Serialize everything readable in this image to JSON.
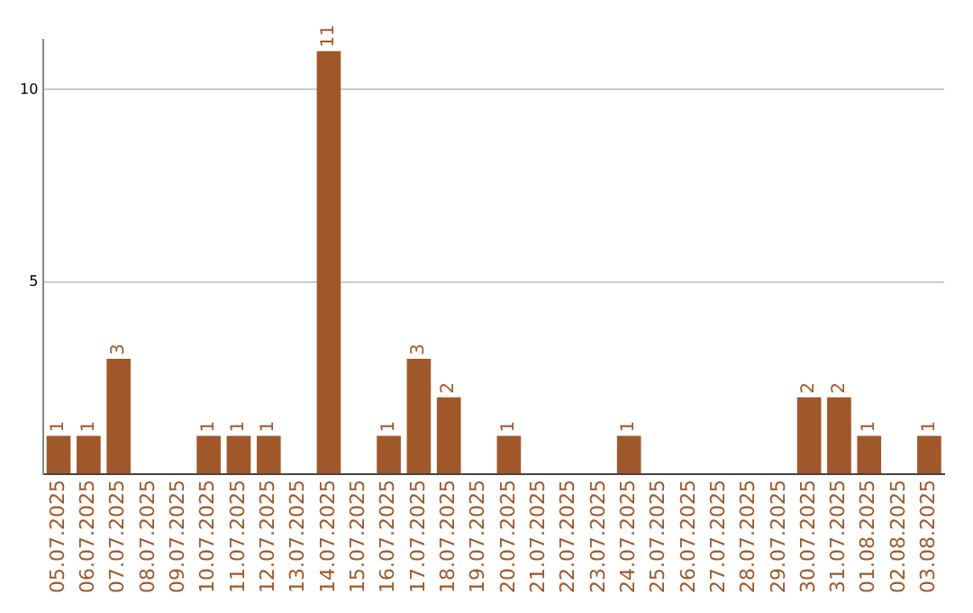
{
  "chart_data": {
    "type": "bar",
    "categories": [
      "05.07.2025",
      "06.07.2025",
      "07.07.2025",
      "08.07.2025",
      "09.07.2025",
      "10.07.2025",
      "11.07.2025",
      "12.07.2025",
      "13.07.2025",
      "14.07.2025",
      "15.07.2025",
      "16.07.2025",
      "17.07.2025",
      "18.07.2025",
      "19.07.2025",
      "20.07.2025",
      "21.07.2025",
      "22.07.2025",
      "23.07.2025",
      "24.07.2025",
      "25.07.2025",
      "26.07.2025",
      "27.07.2025",
      "28.07.2025",
      "29.07.2025",
      "30.07.2025",
      "31.07.2025",
      "01.08.2025",
      "02.08.2025",
      "03.08.2025"
    ],
    "values": [
      1,
      1,
      3,
      0,
      0,
      1,
      1,
      1,
      0,
      11,
      0,
      1,
      3,
      2,
      0,
      1,
      0,
      0,
      0,
      1,
      0,
      0,
      0,
      0,
      0,
      2,
      2,
      1,
      0,
      1
    ],
    "value_labels": [
      "1",
      "1",
      "3",
      null,
      null,
      "1",
      "1",
      "1",
      null,
      "11",
      null,
      "1",
      "3",
      "2",
      null,
      "1",
      null,
      null,
      null,
      "1",
      null,
      null,
      null,
      null,
      null,
      "2",
      "2",
      "1",
      null,
      "1"
    ],
    "color": "#a0582a",
    "ylim": [
      0,
      11.3
    ],
    "yticks": [
      {
        "value": 0,
        "label": null
      },
      5,
      10
    ],
    "grid": "y",
    "legend": false
  }
}
